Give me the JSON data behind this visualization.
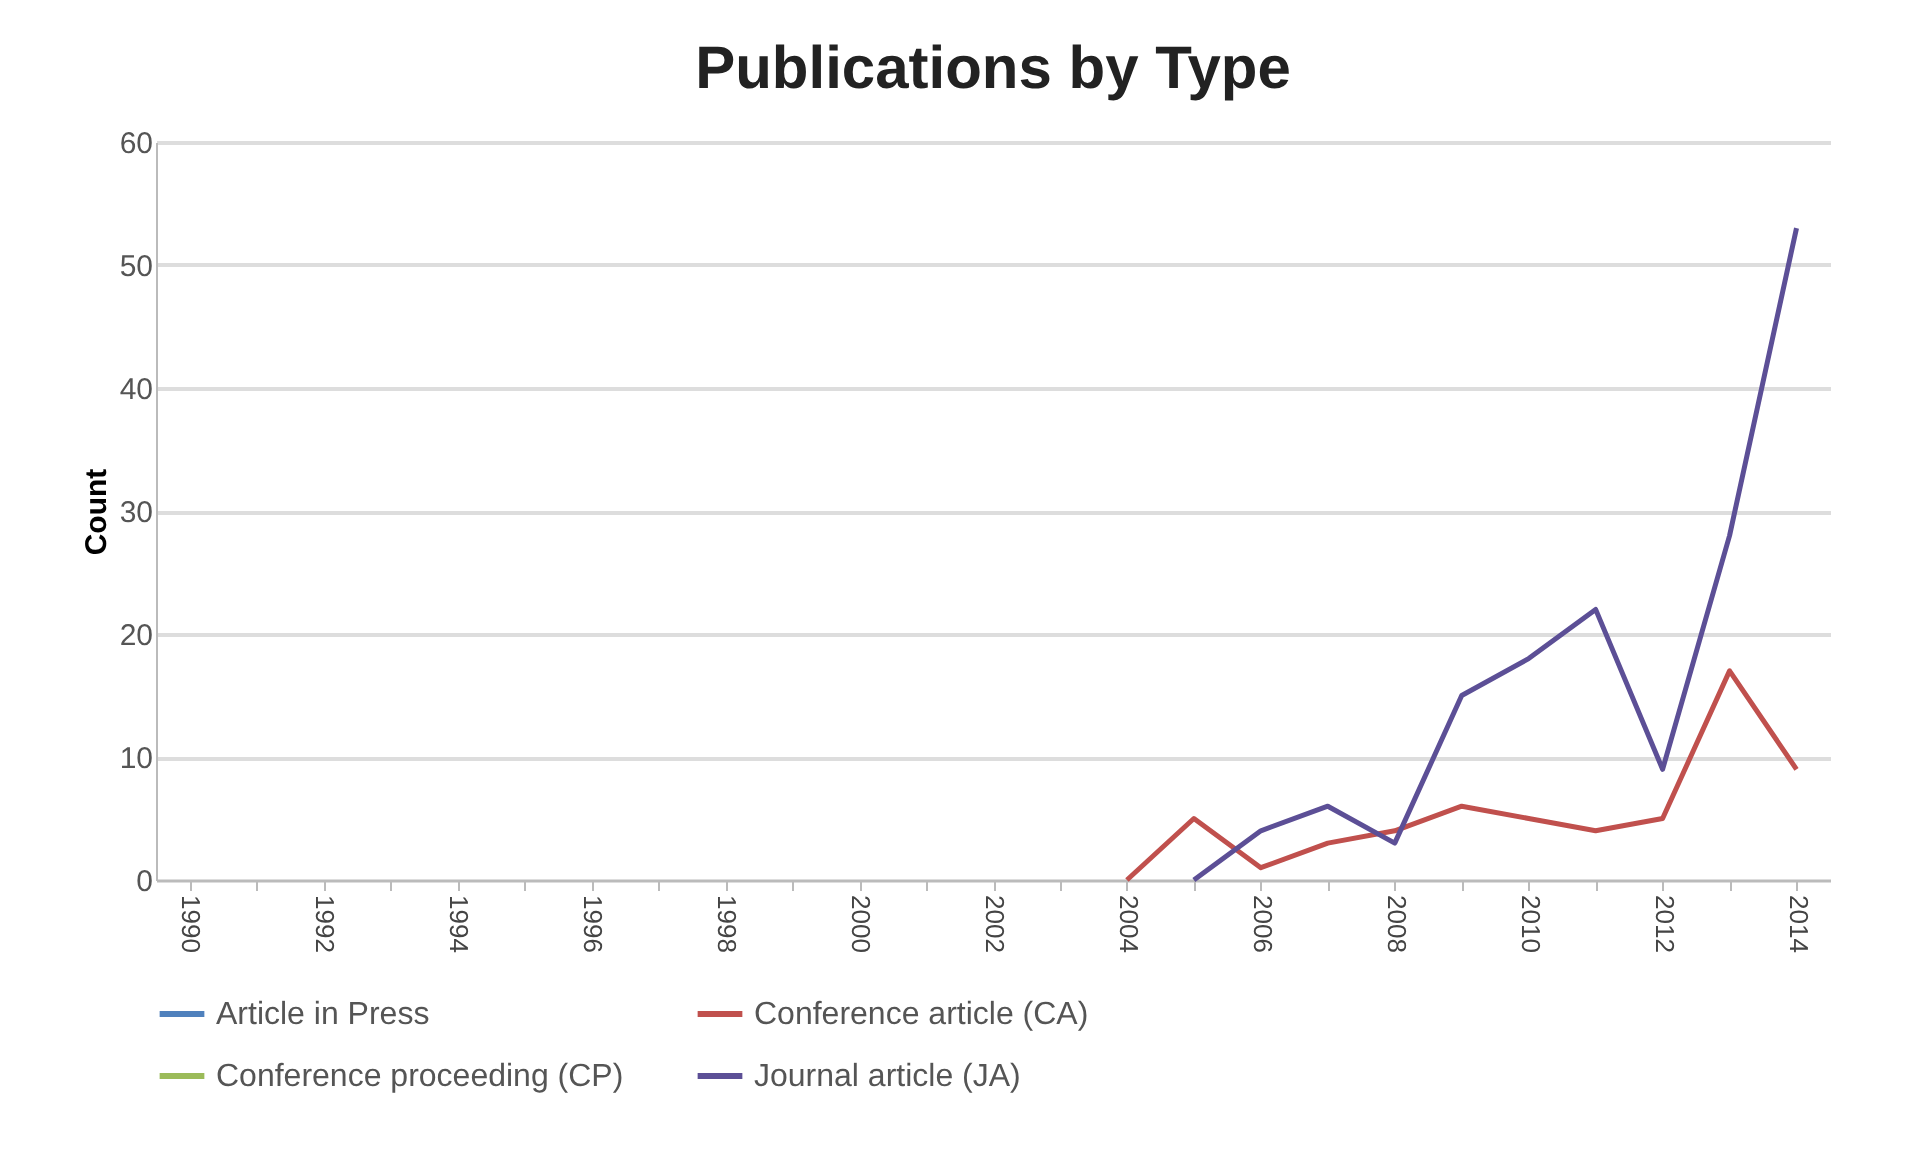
{
  "chart_data": {
    "type": "line",
    "title": "Publications by Type",
    "ylabel": "Count",
    "categories": [
      "1990",
      null,
      "1992",
      null,
      "1994",
      null,
      "1996",
      null,
      "1998",
      null,
      "2000",
      null,
      "2002",
      null,
      "2004",
      null,
      "2006",
      null,
      "2008",
      null,
      "2010",
      null,
      "2012",
      null,
      "2014"
    ],
    "series": [
      {
        "name": "Article in Press",
        "color": "#4f81bd",
        "values": [
          null,
          null,
          null,
          null,
          null,
          null,
          null,
          null,
          null,
          null,
          null,
          null,
          null,
          null,
          null,
          null,
          null,
          null,
          null,
          null,
          null,
          null,
          null,
          null,
          null
        ]
      },
      {
        "name": "Conference article (CA)",
        "color": "#c0504d",
        "values": [
          null,
          null,
          null,
          null,
          null,
          null,
          null,
          null,
          null,
          null,
          null,
          null,
          null,
          null,
          0,
          5,
          1,
          3,
          4,
          6,
          5,
          4,
          5,
          17,
          9
        ]
      },
      {
        "name": "Conference proceeding (CP)",
        "color": "#9bbb59",
        "values": [
          null,
          null,
          null,
          null,
          null,
          null,
          null,
          null,
          null,
          null,
          null,
          null,
          null,
          null,
          null,
          null,
          null,
          null,
          null,
          null,
          null,
          null,
          null,
          null,
          null
        ]
      },
      {
        "name": "Journal article (JA)",
        "color": "#5c4f96",
        "values": [
          null,
          null,
          null,
          null,
          null,
          null,
          null,
          null,
          null,
          null,
          null,
          null,
          null,
          null,
          null,
          0,
          4,
          6,
          3,
          15,
          18,
          22,
          9,
          28,
          53
        ]
      }
    ],
    "ylim": [
      0,
      60
    ],
    "yticks": [
      0,
      10,
      20,
      30,
      40,
      50,
      60
    ],
    "grid": "y",
    "legend": "bottom"
  }
}
